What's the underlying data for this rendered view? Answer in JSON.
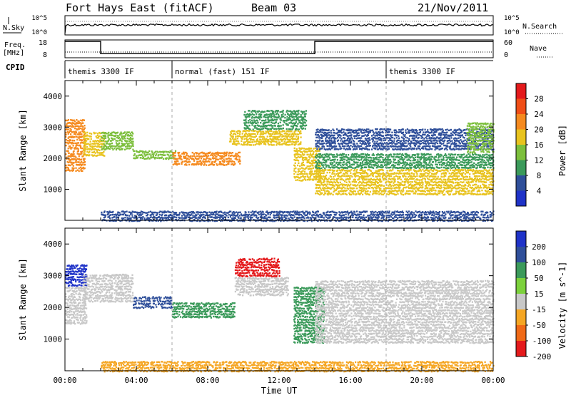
{
  "header": {
    "station": "Fort Hays East (fitACF)",
    "beam": "Beam 03",
    "date": "21/Nov/2011"
  },
  "status_panels": {
    "nsky_label": "N.Sky",
    "nsky_ticks": [
      "10^5",
      "10^0"
    ],
    "nsearch_label": "N.Search",
    "nsearch_ticks": [
      "10^5",
      "10^0"
    ],
    "freq_label_1": "Freq.",
    "freq_label_2": "[MHz]",
    "freq_ticks": [
      "18",
      "8"
    ],
    "nave_label": "Nave",
    "nave_ticks": [
      "60",
      "0"
    ],
    "cpid_label": "CPID",
    "cpid_segments": [
      {
        "label": "themis 3300 IF",
        "start_h": 0,
        "end_h": 6
      },
      {
        "label": "normal (fast) 151 IF",
        "start_h": 6,
        "end_h": 18
      },
      {
        "label": "themis 3300 IF",
        "start_h": 18,
        "end_h": 24
      }
    ],
    "freq_series": [
      {
        "start_h": 0,
        "end_h": 2,
        "value": 18
      },
      {
        "start_h": 2,
        "end_h": 14,
        "value": 10.5
      },
      {
        "start_h": 14,
        "end_h": 24,
        "value": 18
      }
    ]
  },
  "chart_data": [
    {
      "type": "heatmap",
      "name": "power-panel",
      "ylabel": "Slant Range [km]",
      "ylim": [
        0,
        4500
      ],
      "yticks": [
        1000,
        2000,
        3000,
        4000
      ],
      "xlim": [
        0,
        24
      ],
      "colorbar_label": "Power [dB]",
      "colorbar_ticks": [
        "28",
        "24",
        "20",
        "16",
        "12",
        "8",
        "4"
      ],
      "colorbar_colors": [
        "#e41a1c",
        "#f04e17",
        "#f58a1f",
        "#e8c31e",
        "#7cbf3c",
        "#3b9a5a",
        "#2f4f9a",
        "#1f33c8"
      ],
      "regions": [
        {
          "t0": 0.0,
          "t1": 1.1,
          "r0": 1600,
          "r1": 3300,
          "level": 24
        },
        {
          "t0": 1.0,
          "t1": 2.2,
          "r0": 2100,
          "r1": 2900,
          "level": 20
        },
        {
          "t0": 2.0,
          "t1": 3.8,
          "r0": 2300,
          "r1": 2900,
          "level": 16
        },
        {
          "t0": 3.8,
          "t1": 6.2,
          "r0": 2000,
          "r1": 2300,
          "level": 16
        },
        {
          "t0": 6.0,
          "t1": 9.8,
          "r0": 1800,
          "r1": 2250,
          "level": 24
        },
        {
          "t0": 9.2,
          "t1": 13.2,
          "r0": 2450,
          "r1": 2950,
          "level": 20
        },
        {
          "t0": 10.0,
          "t1": 13.5,
          "r0": 2950,
          "r1": 3600,
          "level": 12
        },
        {
          "t0": 12.8,
          "t1": 14.3,
          "r0": 1300,
          "r1": 2400,
          "level": 20
        },
        {
          "t0": 14.0,
          "t1": 24.0,
          "r0": 850,
          "r1": 1700,
          "level": 20
        },
        {
          "t0": 14.0,
          "t1": 24.0,
          "r0": 1700,
          "r1": 2200,
          "level": 12
        },
        {
          "t0": 14.0,
          "t1": 24.0,
          "r0": 2300,
          "r1": 3000,
          "level": 8
        },
        {
          "t0": 22.5,
          "t1": 24.0,
          "r0": 2200,
          "r1": 3200,
          "level": 16
        },
        {
          "t0": 2.0,
          "t1": 24.0,
          "r0": 0,
          "r1": 350,
          "level": 8
        }
      ]
    },
    {
      "type": "heatmap",
      "name": "velocity-panel",
      "ylabel": "Slant Range [km]",
      "ylim": [
        0,
        4500
      ],
      "yticks": [
        1000,
        2000,
        3000,
        4000
      ],
      "xlim": [
        0,
        24
      ],
      "xlabel": "Time UT",
      "xticks": [
        "00:00",
        "04:00",
        "08:00",
        "12:00",
        "16:00",
        "20:00",
        "00:00"
      ],
      "colorbar_label": "Velocity [m s^-1]",
      "colorbar_ticks": [
        "200",
        "100",
        "50",
        "15",
        "-15",
        "-50",
        "-100",
        "-200"
      ],
      "colorbar_colors": [
        "#1f33c8",
        "#2f4f9a",
        "#3b9a5a",
        "#7cd13c",
        "#c8c8c8",
        "#f5a623",
        "#f06a17",
        "#e41a1c"
      ],
      "regions": [
        {
          "t0": 0.0,
          "t1": 1.2,
          "r0": 2700,
          "r1": 3400,
          "level": 200
        },
        {
          "t0": 0.0,
          "t1": 1.2,
          "r0": 1500,
          "r1": 2700,
          "level": 0
        },
        {
          "t0": 1.0,
          "t1": 3.8,
          "r0": 2200,
          "r1": 3100,
          "level": 0
        },
        {
          "t0": 3.8,
          "t1": 6.0,
          "r0": 2000,
          "r1": 2400,
          "level": 100
        },
        {
          "t0": 6.0,
          "t1": 9.5,
          "r0": 1700,
          "r1": 2200,
          "level": 50
        },
        {
          "t0": 9.5,
          "t1": 12.5,
          "r0": 2400,
          "r1": 3000,
          "level": 0
        },
        {
          "t0": 9.5,
          "t1": 12.0,
          "r0": 3000,
          "r1": 3600,
          "level": -200
        },
        {
          "t0": 12.8,
          "t1": 14.5,
          "r0": 900,
          "r1": 2700,
          "level": 50
        },
        {
          "t0": 14.0,
          "t1": 24.0,
          "r0": 900,
          "r1": 2900,
          "level": 0
        },
        {
          "t0": 2.0,
          "t1": 24.0,
          "r0": 0,
          "r1": 350,
          "level": -50
        }
      ]
    }
  ]
}
